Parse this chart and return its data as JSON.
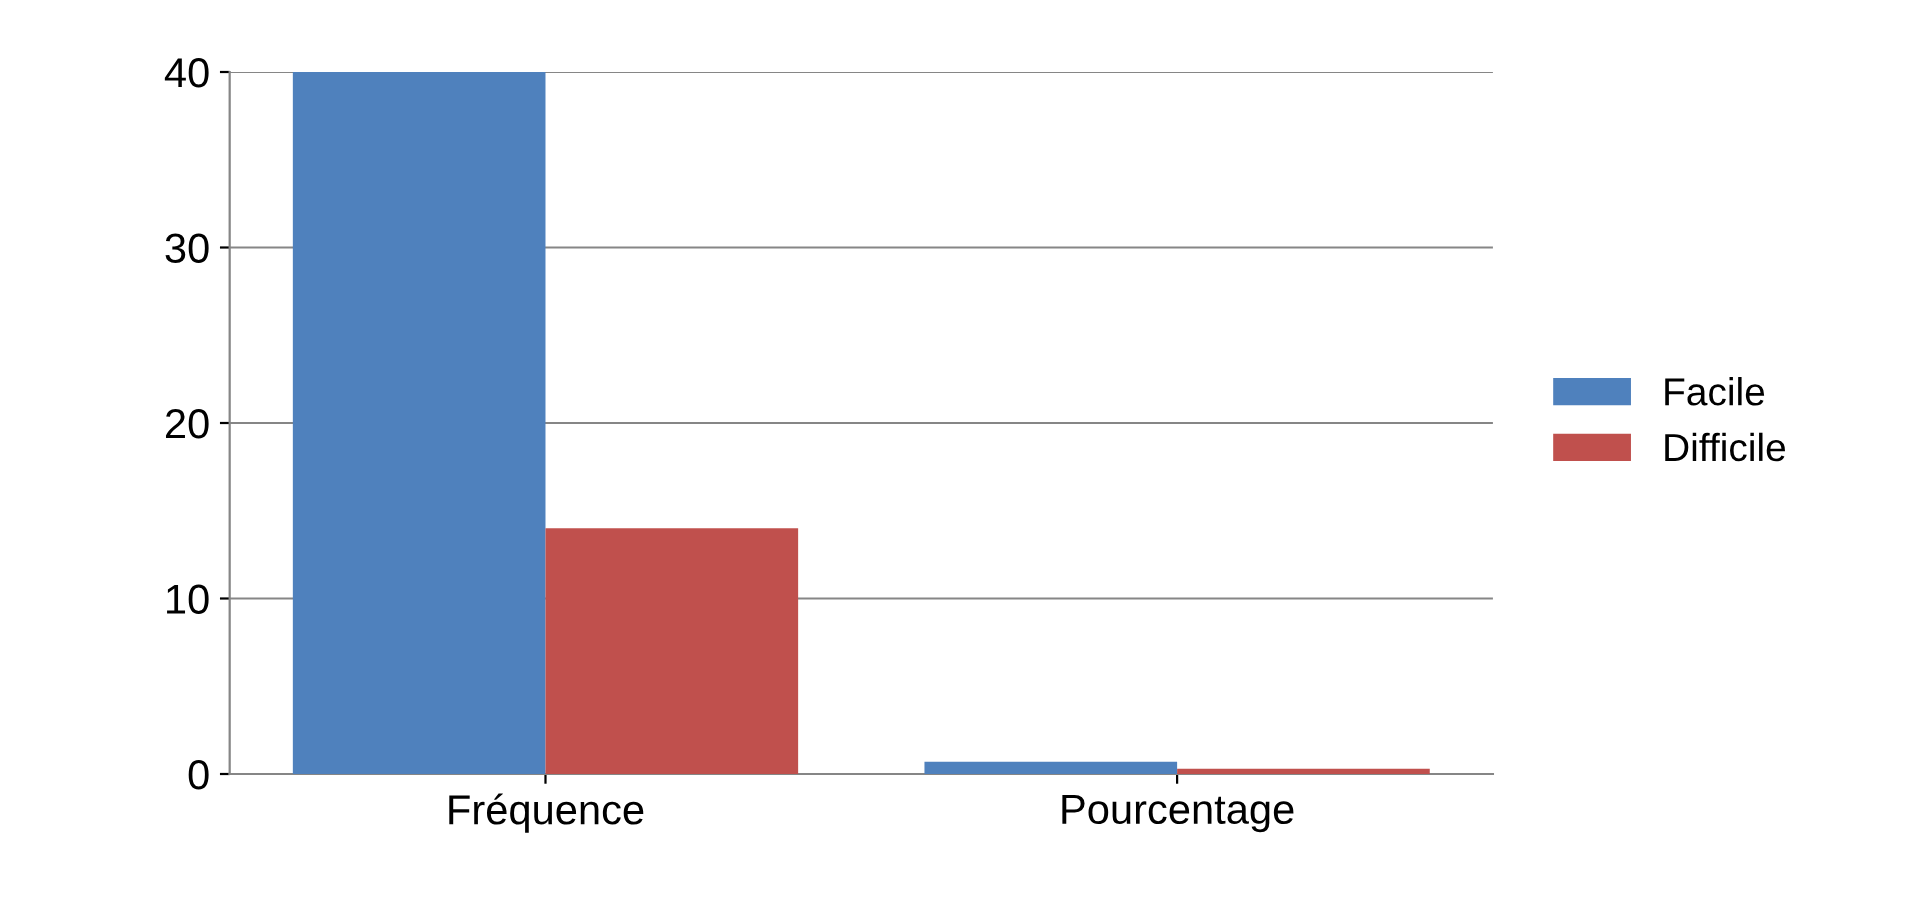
{
  "chart_data": {
    "type": "bar",
    "categories": [
      "Fréquence",
      "Pourcentage"
    ],
    "series": [
      {
        "name": "Facile",
        "color": "#4f81bd",
        "values": [
          40,
          0.7
        ]
      },
      {
        "name": "Difficile",
        "color": "#c0504d",
        "values": [
          14,
          0.3
        ]
      }
    ],
    "ylim": [
      0,
      40
    ],
    "yticks": [
      0,
      10,
      20,
      30,
      40
    ],
    "grid": "y",
    "legend": "right"
  }
}
